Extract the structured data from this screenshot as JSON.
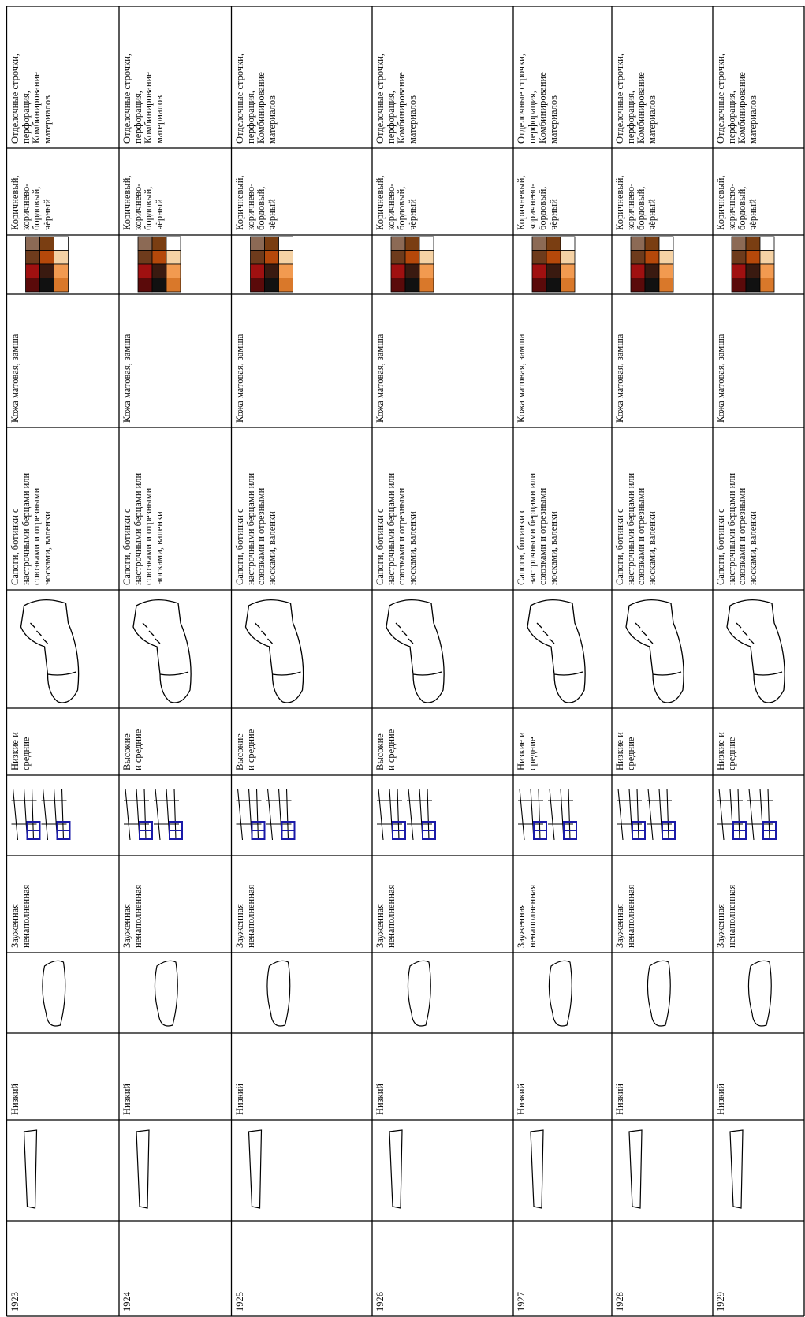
{
  "table": {
    "rows": [
      {
        "year": "1923",
        "heel_height": "Низкий",
        "toe_shape": "Зауженная\nненаполненная",
        "shaft_height": "Низкие и\nсредние",
        "types": "Сапоги, ботинки с\nнастрочными берцами или\nсоюзками и отрезными\nносками, валенки",
        "material": "Кожа матовая, замша",
        "colors": "Коричневый,\nкоричнево-\nбордовый,\nчёрный",
        "decoration": "Отделочные строчки,\nперфорация,\nКомбинирование\nматериалов"
      },
      {
        "year": "1924",
        "heel_height": "Низкий",
        "toe_shape": "Зауженная\nненаполненная",
        "shaft_height": "Высокие\nи средние",
        "types": "Сапоги, ботинки с\nнастрочными берцами или\nсоюзками и отрезными\nносками, валенки",
        "material": "Кожа матовая, замша",
        "colors": "Коричневый,\nкоричнево-\nбордовый,\nчёрный",
        "decoration": "Отделочные строчки,\nперфорация,\nКомбинирование\nматериалов"
      },
      {
        "year": "1925",
        "heel_height": "Низкий",
        "toe_shape": "Зауженная\nненаполненная",
        "shaft_height": "Высокие\nи средние",
        "types": "Сапоги, ботинки с\nнастрочными берцами или\nсоюзками и отрезными\nносками, валенки",
        "material": "Кожа матовая, замша",
        "colors": "Коричневый,\nкоричнево-\nбордовый,\nчёрный",
        "decoration": "Отделочные строчки,\nперфорация,\nКомбинирование\nматериалов"
      },
      {
        "year": "1926",
        "heel_height": "Низкий",
        "toe_shape": "Зауженная\nненаполненная",
        "shaft_height": "Высокие\nи средние",
        "types": "Сапоги, ботинки с\nнастрочными берцами или\nсоюзками и отрезными\nносками, валенки",
        "material": "Кожа матовая, замша",
        "colors": "Коричневый,\nкоричнево-\nбордовый,\nчёрный",
        "decoration": "Отделочные строчки,\nперфорация,\nКомбинирование\nматериалов"
      },
      {
        "year": "1927",
        "heel_height": "Низкий",
        "toe_shape": "Зауженная\nненаполненная",
        "shaft_height": "Низкие и\nсредние",
        "types": "Сапоги, ботинки с\nнастрочными берцами или\nсоюзками и отрезными\nносками, валенки",
        "material": "Кожа матовая, замша",
        "colors": "Коричневый,\nкоричнево-\nбордовый,\nчёрный",
        "decoration": "Отделочные строчки,\nперфорация,\nКомбинирование\nматериалов"
      },
      {
        "year": "1928",
        "heel_height": "Низкий",
        "toe_shape": "Зауженная\nненаполненная",
        "shaft_height": "Низкие и\nсредние",
        "types": "Сапоги, ботинки с\nнастрочными берцами или\nсоюзками и отрезными\nносками, валенки",
        "material": "Кожа матовая, замша",
        "colors": "Коричневый,\nкоричнево-\nбордовый,\nчёрный",
        "decoration": "Отделочные строчки,\nперфорация,\nКомбинирование\nматериалов"
      },
      {
        "year": "1929",
        "heel_height": "Низкий",
        "toe_shape": "Зауженная\nненаполненная",
        "shaft_height": "Низкие и\nсредние",
        "types": "Сапоги, ботинки с\nнастрочными берцами или\nсоюзками и отрезными\nносками, валенки",
        "material": "Кожа матовая, замша",
        "colors": "Коричневый,\nкоричнево-\nбордовый,\nчёрный",
        "decoration": "Отделочные строчки,\nперфорация,\nКомбинирование\nматериалов"
      }
    ]
  }
}
